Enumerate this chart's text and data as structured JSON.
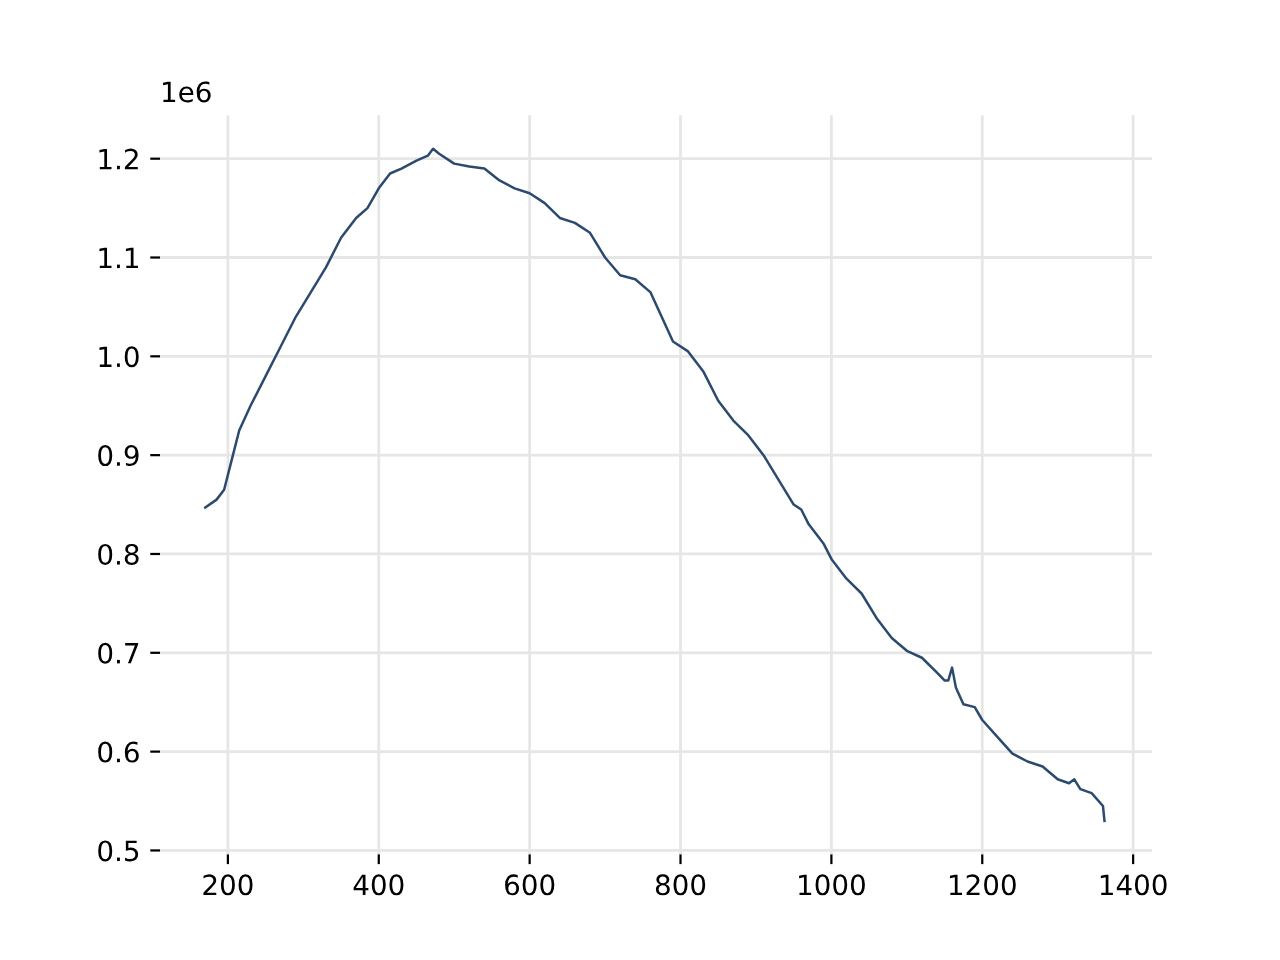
{
  "chart_data": {
    "type": "line",
    "x": [
      170,
      185,
      195,
      205,
      215,
      230,
      250,
      270,
      290,
      310,
      330,
      350,
      370,
      385,
      400,
      415,
      430,
      450,
      465,
      472,
      480,
      500,
      520,
      540,
      560,
      580,
      600,
      620,
      640,
      660,
      680,
      700,
      720,
      740,
      760,
      775,
      790,
      810,
      830,
      850,
      870,
      890,
      910,
      930,
      950,
      960,
      970,
      990,
      1000,
      1020,
      1040,
      1060,
      1080,
      1100,
      1120,
      1140,
      1150,
      1155,
      1160,
      1165,
      1175,
      1190,
      1200,
      1220,
      1240,
      1260,
      1280,
      1300,
      1315,
      1322,
      1330,
      1345,
      1360,
      1362
    ],
    "series": [
      {
        "color": "#2c4a6e",
        "values": [
          0.847,
          0.855,
          0.865,
          0.895,
          0.925,
          0.95,
          0.98,
          1.01,
          1.04,
          1.065,
          1.09,
          1.12,
          1.14,
          1.15,
          1.17,
          1.185,
          1.19,
          1.198,
          1.203,
          1.21,
          1.205,
          1.195,
          1.192,
          1.19,
          1.178,
          1.17,
          1.165,
          1.155,
          1.14,
          1.135,
          1.125,
          1.1,
          1.082,
          1.078,
          1.065,
          1.04,
          1.015,
          1.005,
          0.985,
          0.955,
          0.935,
          0.92,
          0.9,
          0.875,
          0.85,
          0.845,
          0.83,
          0.81,
          0.795,
          0.775,
          0.76,
          0.735,
          0.715,
          0.702,
          0.695,
          0.68,
          0.672,
          0.672,
          0.685,
          0.665,
          0.648,
          0.645,
          0.632,
          0.615,
          0.598,
          0.59,
          0.585,
          0.572,
          0.568,
          0.572,
          0.562,
          0.558,
          0.545,
          0.53
        ]
      }
    ],
    "xlim": [
      110,
      1425
    ],
    "ylim": [
      0.496,
      1.244
    ],
    "xticks": [
      200,
      400,
      600,
      800,
      1000,
      1200,
      1400
    ],
    "yticks": [
      0.5,
      0.6,
      0.7,
      0.8,
      0.9,
      {
        "value": 1.0,
        "label": "1.0"
      },
      1.1,
      1.2
    ],
    "annotations": [
      "1e6"
    ],
    "grid": true,
    "legend": false,
    "marker": "none",
    "line_style": "solid"
  }
}
